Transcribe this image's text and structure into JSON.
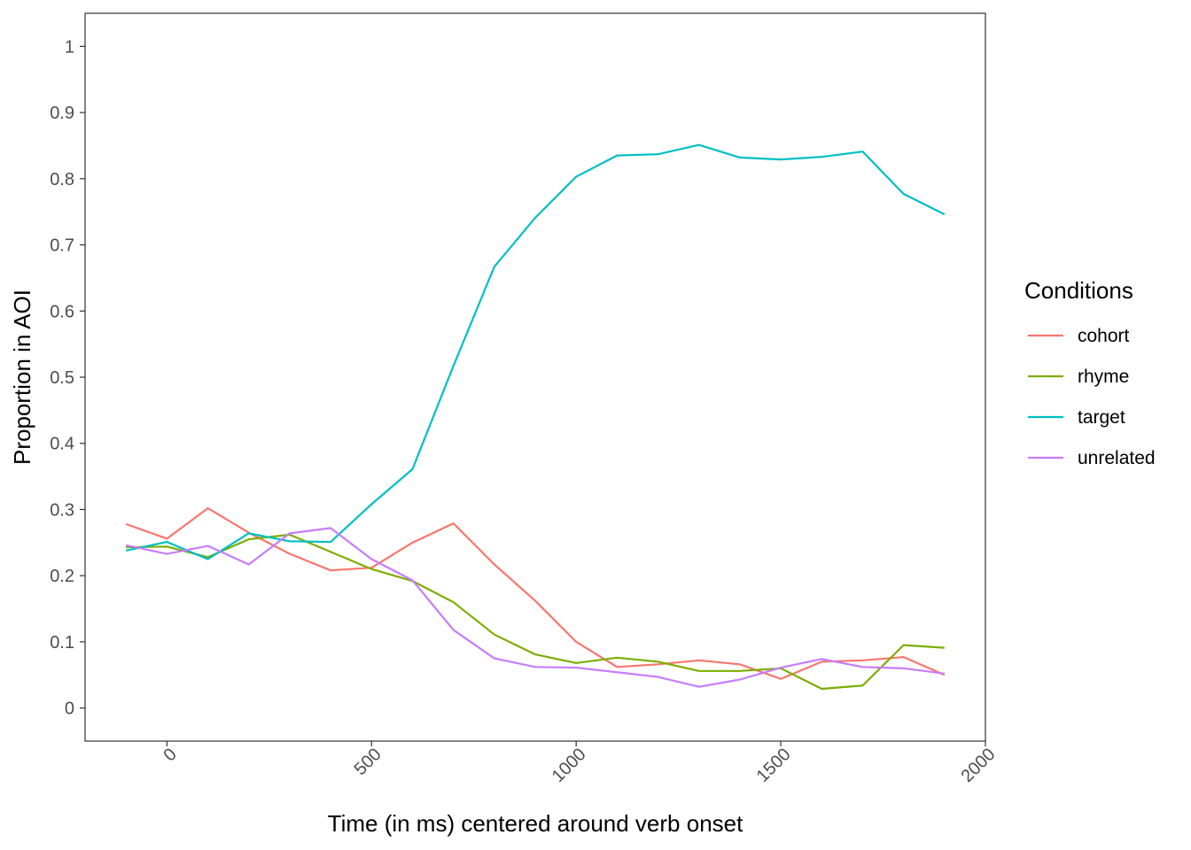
{
  "chart_data": {
    "type": "line",
    "xlabel": "Time (in ms) centered around verb onset",
    "ylabel": "Proportion in AOI",
    "xlim": [
      -200,
      2000
    ],
    "ylim": [
      -0.05,
      1.05
    ],
    "x_ticks": [
      0,
      500,
      1000,
      1500,
      2000
    ],
    "y_ticks": [
      0,
      0.1,
      0.2,
      0.3,
      0.4,
      0.5,
      0.6,
      0.7,
      0.8,
      0.9,
      1
    ],
    "x_tick_labels": [
      "0",
      "500",
      "1000",
      "1500",
      "2000"
    ],
    "y_tick_labels": [
      "0",
      "0.1",
      "0.2",
      "0.3",
      "0.4",
      "0.5",
      "0.6",
      "0.7",
      "0.8",
      "0.9",
      "1"
    ],
    "grid": false,
    "legend": {
      "title": "Conditions",
      "position": "right"
    },
    "x": [
      -100,
      0,
      100,
      200,
      300,
      400,
      500,
      600,
      700,
      800,
      900,
      1000,
      1100,
      1200,
      1300,
      1400,
      1500,
      1600,
      1700,
      1800,
      1900
    ],
    "series": [
      {
        "name": "cohort",
        "color": "#F8766D",
        "values": [
          0.278,
          0.256,
          0.302,
          0.265,
          0.233,
          0.208,
          0.212,
          0.25,
          0.279,
          0.217,
          0.162,
          0.1,
          0.062,
          0.066,
          0.072,
          0.066,
          0.044,
          0.07,
          0.072,
          0.077,
          0.05
        ]
      },
      {
        "name": "rhyme",
        "color": "#7CAE00",
        "values": [
          0.243,
          0.244,
          0.228,
          0.255,
          0.262,
          0.236,
          0.21,
          0.192,
          0.16,
          0.111,
          0.081,
          0.068,
          0.076,
          0.07,
          0.056,
          0.056,
          0.06,
          0.029,
          0.034,
          0.095,
          0.091
        ]
      },
      {
        "name": "target",
        "color": "#00BFC4",
        "values": [
          0.238,
          0.251,
          0.225,
          0.264,
          0.252,
          0.251,
          0.308,
          0.361,
          0.517,
          0.667,
          0.741,
          0.803,
          0.835,
          0.837,
          0.851,
          0.832,
          0.829,
          0.833,
          0.841,
          0.777,
          0.746
        ]
      },
      {
        "name": "unrelated",
        "color": "#C77CFF",
        "values": [
          0.246,
          0.233,
          0.245,
          0.217,
          0.264,
          0.272,
          0.225,
          0.193,
          0.118,
          0.075,
          0.062,
          0.061,
          0.054,
          0.047,
          0.032,
          0.043,
          0.061,
          0.074,
          0.062,
          0.06,
          0.052
        ]
      }
    ]
  }
}
